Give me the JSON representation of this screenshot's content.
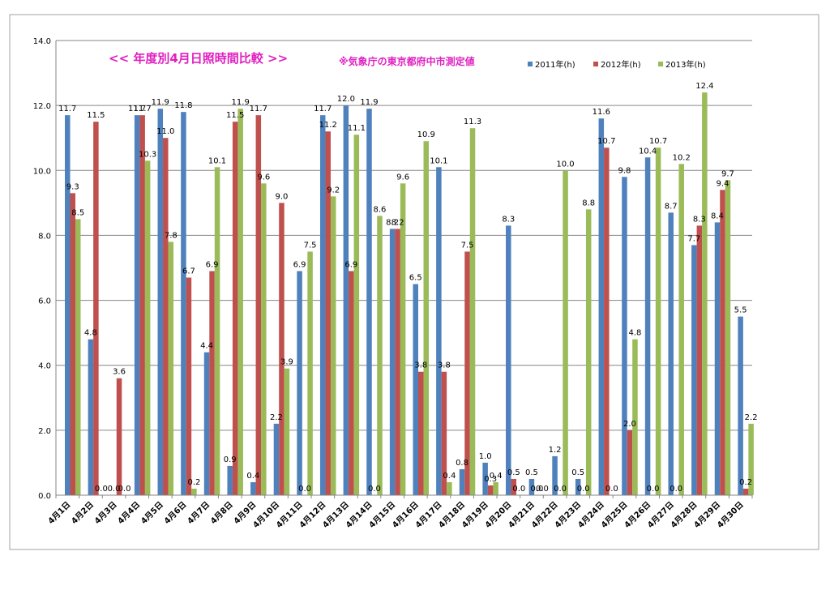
{
  "chart_data": {
    "type": "bar",
    "title": "<<  年度別4月日照時間比較  >>",
    "subtitle": "※気象庁の東京都府中市測定値",
    "xlabel": "",
    "ylabel": "",
    "ylim": [
      0,
      14
    ],
    "yticks": [
      "0.0",
      "2.0",
      "4.0",
      "6.0",
      "8.0",
      "10.0",
      "12.0",
      "14.0"
    ],
    "grid": true,
    "legend_position": "top-right",
    "categories": [
      "4月1日",
      "4月2日",
      "4月3日",
      "4月4日",
      "4月5日",
      "4月6日",
      "4月7日",
      "4月8日",
      "4月9日",
      "4月10日",
      "4月11日",
      "4月12日",
      "4月13日",
      "4月14日",
      "4月15日",
      "4月16日",
      "4月17日",
      "4月18日",
      "4月19日",
      "4月20日",
      "4月21日",
      "4月22日",
      "4月23日",
      "4月24日",
      "4月25日",
      "4月26日",
      "4月27日",
      "4月28日",
      "4月29日",
      "4月30日"
    ],
    "series": [
      {
        "name": "2011年(h)",
        "color": "#4F81BD",
        "values": [
          11.7,
          4.8,
          0.0,
          11.7,
          11.9,
          11.8,
          4.4,
          0.9,
          0.4,
          2.2,
          6.9,
          11.7,
          12.0,
          11.9,
          8.2,
          6.5,
          10.1,
          0.8,
          1.0,
          8.3,
          0.5,
          1.2,
          0.5,
          11.6,
          9.8,
          10.4,
          8.7,
          7.7,
          8.4,
          5.5
        ]
      },
      {
        "name": "2012年(h)",
        "color": "#C0504D",
        "values": [
          9.3,
          11.5,
          3.6,
          11.7,
          11.0,
          6.7,
          6.9,
          11.5,
          11.7,
          9.0,
          0.0,
          11.2,
          6.9,
          0.0,
          8.2,
          3.8,
          3.8,
          7.5,
          0.3,
          0.5,
          0.0,
          0.0,
          0.0,
          10.7,
          2.0,
          0.0,
          0.0,
          8.3,
          9.4,
          0.2
        ]
      },
      {
        "name": "2013年(h)",
        "color": "#9BBB59",
        "values": [
          8.5,
          0.0,
          0.0,
          10.3,
          7.8,
          0.2,
          10.1,
          11.9,
          9.6,
          3.9,
          7.5,
          9.2,
          11.1,
          8.6,
          9.6,
          10.9,
          0.4,
          11.3,
          0.4,
          0.0,
          0.0,
          10.0,
          8.8,
          0.0,
          4.8,
          10.7,
          10.2,
          12.4,
          9.7,
          2.2
        ]
      }
    ]
  },
  "colors": {
    "title": "#E020C0",
    "gridline": "#868686",
    "axis": "#868686",
    "frame": "#A0A0A0"
  }
}
